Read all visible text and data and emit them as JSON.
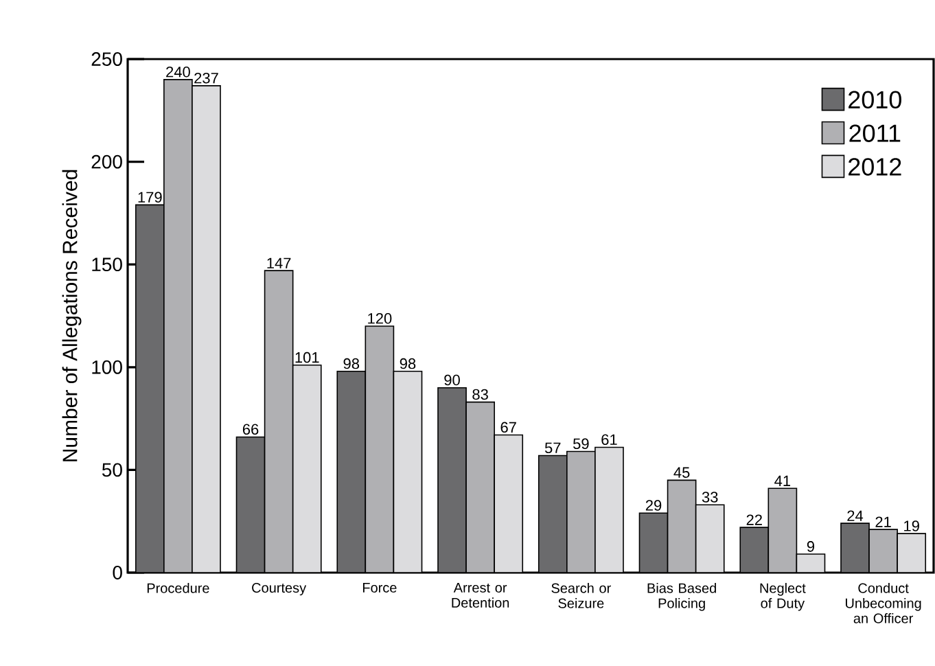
{
  "chart_data": {
    "type": "bar",
    "ylabel": "Number of Allegations Received",
    "categories": [
      "Procedure",
      "Courtesy",
      "Force",
      "Arrest or Detention",
      "Search or Seizure",
      "Bias Based Policing",
      "Neglect of Duty",
      "Conduct Unbecoming an Officer"
    ],
    "series": [
      {
        "name": "2010",
        "color": "#6b6b6d",
        "values": [
          179,
          66,
          98,
          90,
          57,
          29,
          22,
          24
        ]
      },
      {
        "name": "2011",
        "color": "#b0b0b3",
        "values": [
          240,
          147,
          120,
          83,
          59,
          45,
          41,
          21
        ]
      },
      {
        "name": "2012",
        "color": "#dcdcde",
        "values": [
          237,
          101,
          98,
          67,
          61,
          33,
          9,
          19
        ]
      }
    ],
    "ylim": [
      0,
      250
    ],
    "yticks": [
      0,
      50,
      100,
      150,
      200,
      250
    ],
    "data_labels": true,
    "legend": "top right",
    "grid": false
  }
}
